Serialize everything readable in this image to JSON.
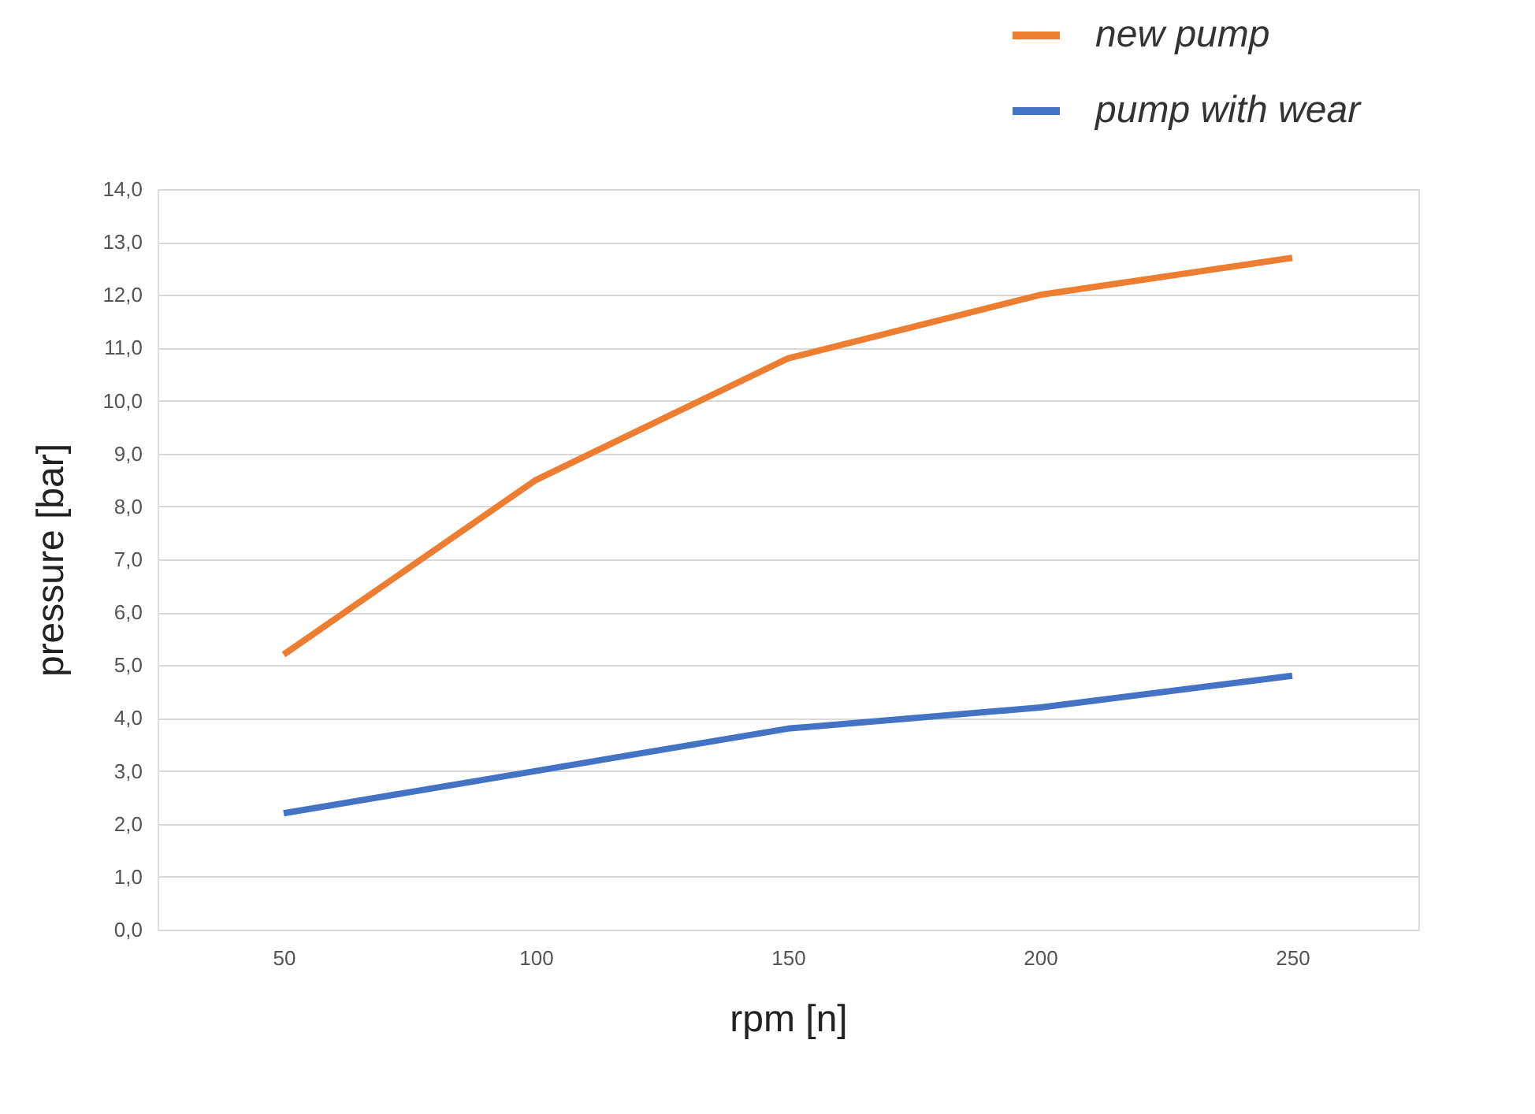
{
  "chart_data": {
    "type": "line",
    "xlabel": "rpm [n]",
    "ylabel": "pressure [bar]",
    "categories": [
      "50",
      "100",
      "150",
      "200",
      "250"
    ],
    "series": [
      {
        "name": "new pump",
        "color": "#ed7d31",
        "values": [
          5.2,
          8.5,
          10.8,
          12.0,
          12.7
        ]
      },
      {
        "name": "pump with wear",
        "color": "#4472c4",
        "values": [
          2.2,
          3.0,
          3.8,
          4.2,
          4.8
        ]
      }
    ],
    "ylim": [
      0,
      14
    ],
    "yticks": [
      {
        "value": 0,
        "label": "0,0"
      },
      {
        "value": 1,
        "label": "1,0"
      },
      {
        "value": 2,
        "label": "2,0"
      },
      {
        "value": 3,
        "label": "3,0"
      },
      {
        "value": 4,
        "label": "4,0"
      },
      {
        "value": 5,
        "label": "5,0"
      },
      {
        "value": 6,
        "label": "6,0"
      },
      {
        "value": 7,
        "label": "7,0"
      },
      {
        "value": 8,
        "label": "8,0"
      },
      {
        "value": 9,
        "label": "9,0"
      },
      {
        "value": 10,
        "label": "10,0"
      },
      {
        "value": 11,
        "label": "11,0"
      },
      {
        "value": 12,
        "label": "12,0"
      },
      {
        "value": 13,
        "label": "13,0"
      },
      {
        "value": 14,
        "label": "14,0"
      }
    ],
    "grid": "y",
    "legend": "top right",
    "marker": "none",
    "line_style": "solid"
  }
}
